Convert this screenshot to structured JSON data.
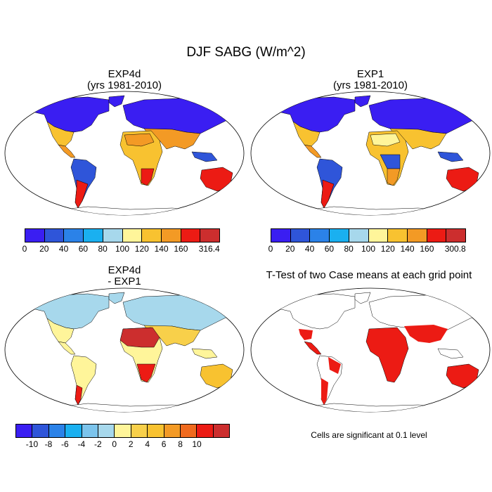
{
  "figure": {
    "title": "DJF SABG (W/m^2)"
  },
  "panels": [
    {
      "id": "exp4d",
      "title_line1": "EXP4d",
      "title_line2": "(yrs 1981-2010)"
    },
    {
      "id": "exp1",
      "title_line1": "EXP1",
      "title_line2": "(yrs 1981-2010)"
    },
    {
      "id": "diff",
      "title_line1": "EXP4d",
      "title_line2": "- EXP1"
    },
    {
      "id": "ttest",
      "title_line1": "T-Test of two Case means at each grid point"
    }
  ],
  "colorbars": {
    "exp4d": {
      "colors": [
        "#3a1ef2",
        "#2f55d9",
        "#2b82e8",
        "#1ab0f0",
        "#a7d8ec",
        "#fff59a",
        "#f8c230",
        "#f39a25",
        "#ec1b14",
        "#cc2e2e"
      ],
      "labels": [
        "0",
        "20",
        "40",
        "60",
        "80",
        "100",
        "120",
        "140",
        "160",
        "316.4"
      ]
    },
    "exp1": {
      "colors": [
        "#3a1ef2",
        "#2f55d9",
        "#2b82e8",
        "#1ab0f0",
        "#a7d8ec",
        "#fff59a",
        "#f8c230",
        "#f39a25",
        "#ec1b14",
        "#cc2e2e"
      ],
      "labels": [
        "0",
        "20",
        "40",
        "60",
        "80",
        "100",
        "120",
        "140",
        "160",
        "300.8"
      ]
    },
    "diff": {
      "colors": [
        "#3a1ef2",
        "#2f55d9",
        "#2b82e8",
        "#1ab0f0",
        "#7cc4ec",
        "#a7d8ec",
        "#fff59a",
        "#f8d04a",
        "#f8c230",
        "#f39a25",
        "#f06a1e",
        "#ec1b14",
        "#cc2e2e"
      ],
      "labels": [
        "-10",
        "-8",
        "-6",
        "-4",
        "-2",
        "0",
        "2",
        "4",
        "6",
        "8",
        "10"
      ]
    }
  },
  "ttest_note": "Cells are significant at 0.1 level"
}
